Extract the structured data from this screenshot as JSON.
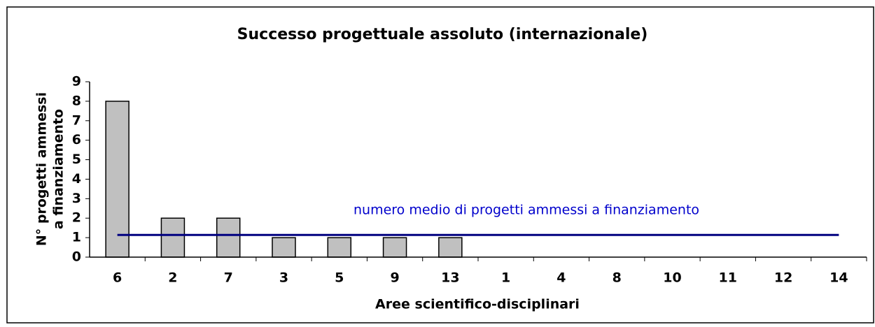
{
  "chart_data": {
    "type": "bar",
    "title": "Successo progettuale assoluto (internazionale)",
    "x_label": "Aree scientifico-disciplinari",
    "y_label": [
      "N° progetti ammessi",
      "a finanziamento"
    ],
    "categories": [
      "6",
      "2",
      "7",
      "3",
      "5",
      "9",
      "13",
      "1",
      "4",
      "8",
      "10",
      "11",
      "12",
      "14"
    ],
    "values": [
      8,
      2,
      2,
      1,
      1,
      1,
      1,
      0,
      0,
      0,
      0,
      0,
      0,
      0
    ],
    "color": "#c0c0c0",
    "ylim": [
      0,
      9
    ],
    "yticks": [
      0,
      1,
      2,
      3,
      4,
      5,
      6,
      7,
      8,
      9
    ],
    "average": {
      "label": "numero medio di progetti ammessi a finanziamento",
      "value": 1.14,
      "color": "#000080"
    }
  }
}
